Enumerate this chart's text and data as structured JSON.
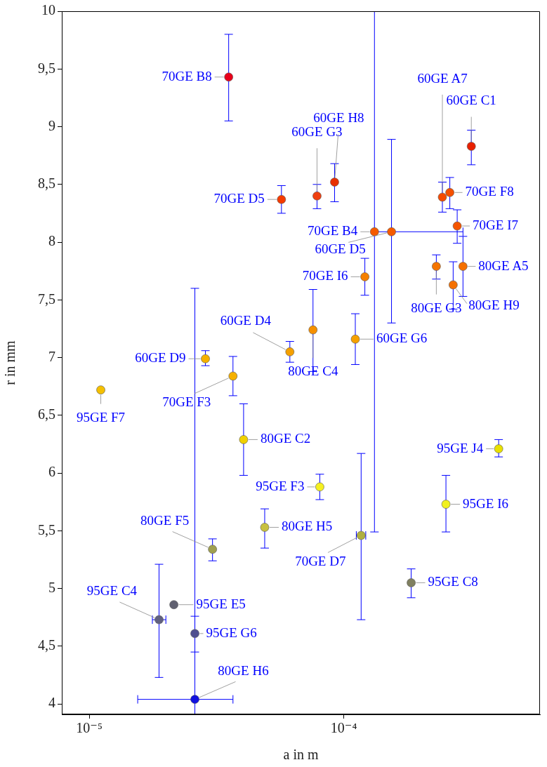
{
  "chart_data": {
    "type": "scatter",
    "xlabel": "a in m",
    "ylabel": "r in mm",
    "log": "x",
    "grid": false,
    "legend": false,
    "marker": "circle",
    "xlim": [
      7.8e-06,
      0.00059
    ],
    "ylim": [
      3.91,
      10
    ],
    "xticks": [
      {
        "value": 1e-05,
        "label": "10⁻⁵"
      },
      {
        "value": 0.0001,
        "label": "10⁻⁴"
      }
    ],
    "yticks": [
      4,
      {
        "value": 4.5,
        "label": "4,5"
      },
      5,
      {
        "value": 5.5,
        "label": "5,5"
      },
      6,
      {
        "value": 6.5,
        "label": "6,5"
      },
      7,
      {
        "value": 7.5,
        "label": "7,5"
      },
      8,
      {
        "value": 8.5,
        "label": "8,5"
      },
      9,
      {
        "value": 9.5,
        "label": "9,5"
      },
      10
    ],
    "x": [
      3.53e-05,
      5.69e-05,
      7.85e-05,
      9.2e-05,
      0.000132,
      0.000154,
      0.000244,
      0.000317,
      0.000261,
      0.000279,
      0.000294,
      0.000231,
      0.000269,
      0.000121,
      0.000111,
      7.57e-05,
      6.14e-05,
      2.86e-05,
      3.67e-05,
      1.11e-05,
      4.04e-05,
      8.05e-05,
      0.000406,
      0.000252,
      4.89e-05,
      3.05e-05,
      0.000117,
      0.000184,
      2.15e-05,
      1.88e-05,
      2.6e-05,
      2.6e-05
    ],
    "values": [
      9.43,
      8.37,
      8.4,
      8.52,
      8.09,
      8.09,
      8.39,
      8.83,
      8.43,
      8.14,
      7.79,
      7.79,
      7.63,
      7.7,
      7.16,
      7.24,
      7.05,
      6.99,
      6.84,
      6.72,
      6.29,
      5.88,
      6.21,
      5.73,
      5.53,
      5.34,
      5.46,
      5.05,
      4.86,
      4.73,
      4.61,
      4.04
    ],
    "errors": [
      [
        9.05,
        9.8
      ],
      [
        8.25,
        8.49
      ],
      [
        8.29,
        8.5
      ],
      [
        8.35,
        8.68
      ],
      [
        5.49,
        10
      ],
      [
        7.3,
        8.89
      ],
      [
        8.26,
        8.52
      ],
      [
        8.67,
        8.97
      ],
      [
        8.29,
        8.56
      ],
      [
        7.99,
        8.28
      ],
      [
        7.53,
        8.05
      ],
      [
        7.68,
        7.89
      ],
      [
        7.42,
        7.83
      ],
      [
        7.54,
        7.86
      ],
      [
        6.94,
        7.38
      ],
      [
        6.88,
        7.59
      ],
      [
        6.96,
        7.14
      ],
      [
        6.93,
        7.06
      ],
      [
        6.67,
        7.01
      ],
      null,
      [
        5.98,
        6.6
      ],
      [
        5.77,
        5.99
      ],
      [
        6.14,
        6.29
      ],
      [
        5.49,
        5.98
      ],
      [
        5.35,
        5.69
      ],
      [
        5.24,
        5.43
      ],
      [
        4.73,
        6.17
      ],
      [
        4.92,
        5.17
      ],
      null,
      [
        4.23,
        5.21
      ],
      [
        4.45,
        4.76
      ],
      [
        3.91,
        7.6
      ]
    ],
    "xerrors": [
      null,
      null,
      null,
      null,
      [
        0.000132,
        0.000294
      ],
      null,
      null,
      null,
      null,
      null,
      null,
      null,
      null,
      null,
      null,
      null,
      null,
      null,
      null,
      null,
      null,
      null,
      null,
      null,
      null,
      null,
      [
        0.000112,
        0.000122
      ],
      null,
      null,
      [
        1.77e-05,
        2e-05
      ],
      null,
      [
        1.55e-05,
        3.67e-05
      ]
    ],
    "colors": [
      "#e8001a",
      "#f53b00",
      "#f04010",
      "#e83000",
      "#f55a00",
      "#f55a00",
      "#f54a00",
      "#e82000",
      "#f55000",
      "#f55500",
      "#f57000",
      "#f57500",
      "#f57000",
      "#f58000",
      "#f5a000",
      "#f59000",
      "#f5a000",
      "#f5b000",
      "#f5b000",
      "#f5c000",
      "#f0d000",
      "#f5f020",
      "#e8e000",
      "#f0f020",
      "#c8c040",
      "#a0a050",
      "#b0b040",
      "#808060",
      "#606070",
      "#606080",
      "#505090",
      "#1010e0"
    ],
    "annotations": [
      {
        "text": "70GE B8",
        "x": 3.53e-05,
        "y": 9.43
      },
      {
        "text": "70GE D5",
        "x": 5.69e-05,
        "y": 8.37
      },
      {
        "text": "60GE G3",
        "x": 7.85e-05,
        "y": 8.4
      },
      {
        "text": "60GE H8",
        "x": 9.2e-05,
        "y": 8.52
      },
      {
        "text": "70GE B4",
        "x": 0.000132,
        "y": 8.09
      },
      {
        "text": "60GE D5",
        "x": 0.000154,
        "y": 8.09
      },
      {
        "text": "60GE A7",
        "x": 0.000244,
        "y": 8.39
      },
      {
        "text": "60GE C1",
        "x": 0.000317,
        "y": 8.83
      },
      {
        "text": "70GE F8",
        "x": 0.000261,
        "y": 8.43
      },
      {
        "text": "70GE I7",
        "x": 0.000279,
        "y": 8.14
      },
      {
        "text": "80GE A5",
        "x": 0.000294,
        "y": 7.79
      },
      {
        "text": "80GE G3",
        "x": 0.000231,
        "y": 7.79
      },
      {
        "text": "80GE H9",
        "x": 0.000269,
        "y": 7.63
      },
      {
        "text": "70GE I6",
        "x": 0.000121,
        "y": 7.7
      },
      {
        "text": "60GE G6",
        "x": 0.000111,
        "y": 7.16
      },
      {
        "text": "80GE C4",
        "x": 7.57e-05,
        "y": 7.24
      },
      {
        "text": "60GE D4",
        "x": 6.14e-05,
        "y": 7.05
      },
      {
        "text": "60GE D9",
        "x": 2.86e-05,
        "y": 6.99
      },
      {
        "text": "70GE F3",
        "x": 3.67e-05,
        "y": 6.84
      },
      {
        "text": "95GE F7",
        "x": 1.11e-05,
        "y": 6.72
      },
      {
        "text": "80GE C2",
        "x": 4.04e-05,
        "y": 6.29
      },
      {
        "text": "95GE F3",
        "x": 8.05e-05,
        "y": 5.88
      },
      {
        "text": "95GE J4",
        "x": 0.000406,
        "y": 6.21
      },
      {
        "text": "95GE I6",
        "x": 0.000252,
        "y": 5.73
      },
      {
        "text": "80GE H5",
        "x": 4.89e-05,
        "y": 5.53
      },
      {
        "text": "80GE F5",
        "x": 3.05e-05,
        "y": 5.34
      },
      {
        "text": "70GE D7",
        "x": 0.000117,
        "y": 5.46
      },
      {
        "text": "95GE C8",
        "x": 0.000184,
        "y": 5.05
      },
      {
        "text": "95GE E5",
        "x": 2.15e-05,
        "y": 4.86
      },
      {
        "text": "95GE C4",
        "x": 1.88e-05,
        "y": 4.73
      },
      {
        "text": "95GE G6",
        "x": 2.6e-05,
        "y": 4.61
      },
      {
        "text": "80GE H6",
        "x": 2.6e-05,
        "y": 4.04
      }
    ]
  }
}
